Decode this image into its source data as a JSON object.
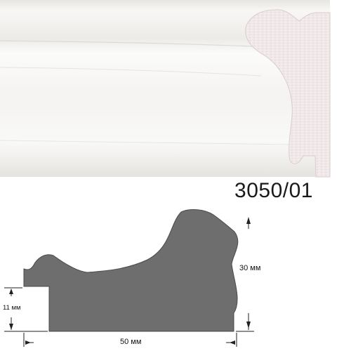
{
  "product": {
    "article_number": "3050/01",
    "frame_finish_color": "#f6f5f3",
    "profile_color": "#6e6e6e",
    "section_color": "#f0e8e8"
  },
  "dimensions": {
    "height_label": "30 мм",
    "rabbet_label": "11 мм",
    "width_label": "50 мм"
  }
}
